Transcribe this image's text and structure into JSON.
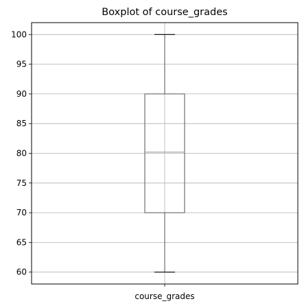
{
  "chart_data": {
    "type": "boxplot",
    "title": "Boxplot of course_grades",
    "xlabel": "",
    "ylabel": "",
    "categories": [
      "course_grades"
    ],
    "boxes": [
      {
        "category": "course_grades",
        "whisker_low": 60,
        "q1": 70,
        "median": 80.2,
        "q3": 90,
        "whisker_high": 100
      }
    ],
    "ylim": [
      58,
      102
    ],
    "yticks": [
      60,
      65,
      70,
      75,
      80,
      85,
      90,
      95,
      100
    ],
    "grid": true,
    "colors": {
      "box": "#6e6e6e",
      "median": "#a8a8a8",
      "grid": "#b0b0b0",
      "axes": "#000000"
    }
  }
}
